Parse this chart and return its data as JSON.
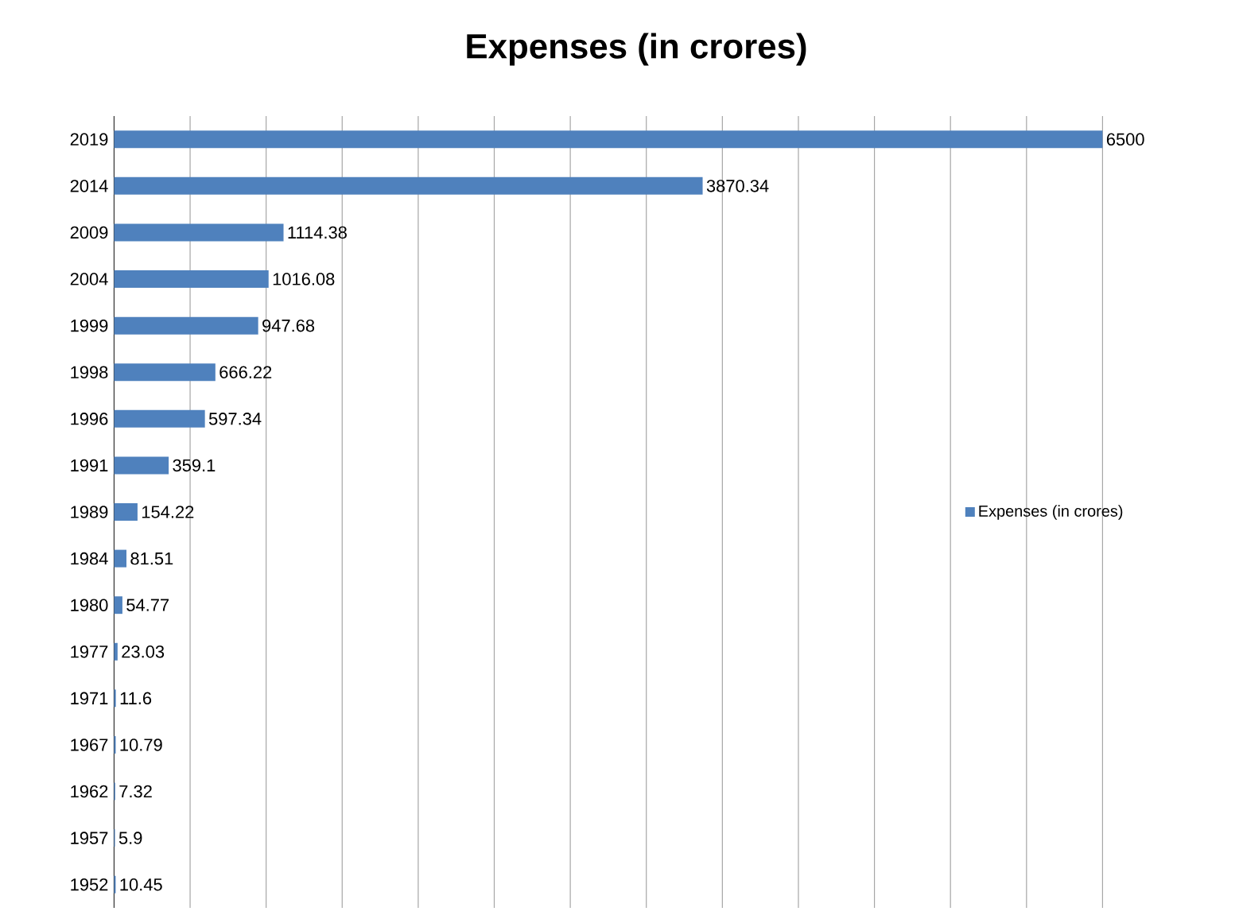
{
  "chart_data": {
    "type": "bar",
    "orientation": "horizontal",
    "title": "Expenses (in crores)",
    "categories": [
      "2019",
      "2014",
      "2009",
      "2004",
      "1999",
      "1998",
      "1996",
      "1991",
      "1989",
      "1984",
      "1980",
      "1977",
      "1971",
      "1967",
      "1962",
      "1957",
      "1952"
    ],
    "series": [
      {
        "name": "Expenses (in crores)",
        "color": "#4f81bd",
        "values": [
          6500,
          3870.34,
          1114.38,
          1016.08,
          947.68,
          666.22,
          597.34,
          359.1,
          154.22,
          81.51,
          54.77,
          23.03,
          11.6,
          10.79,
          7.32,
          5.9,
          10.45
        ]
      }
    ],
    "tick_labels": "y",
    "grid": "x",
    "legend": "right",
    "data_labels": true
  }
}
